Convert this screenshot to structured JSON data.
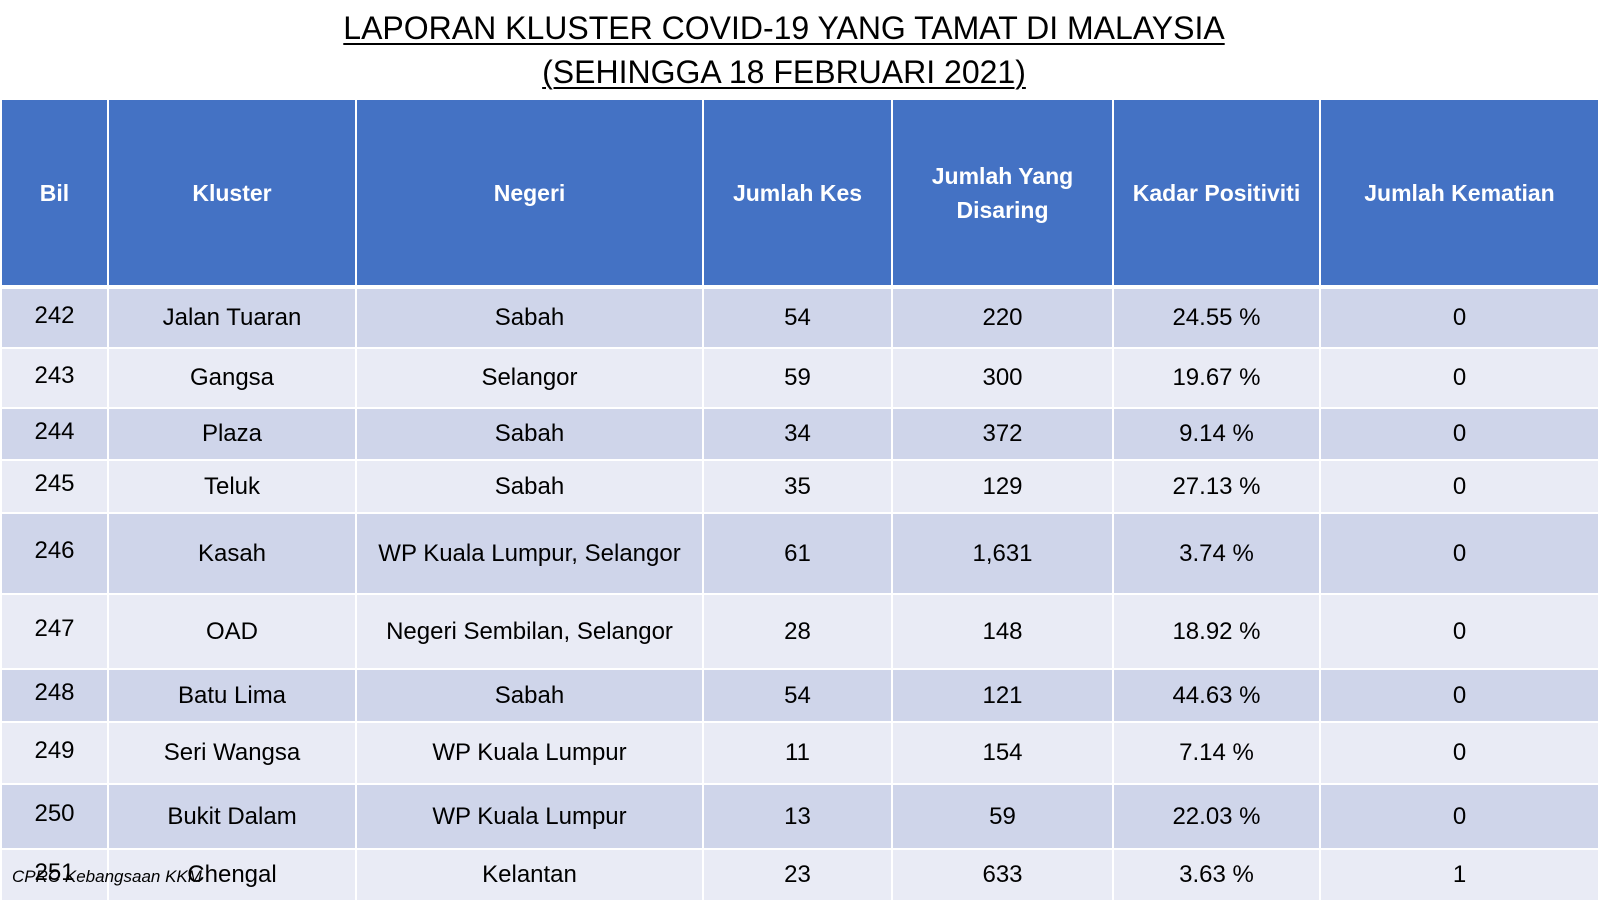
{
  "title": {
    "line1": "LAPORAN KLUSTER COVID-19 YANG TAMAT DI MALAYSIA",
    "line2": "(SEHINGGA 18 FEBRUARI 2021)"
  },
  "table": {
    "columns": [
      "Bil",
      "Kluster",
      "Negeri",
      "Jumlah Kes",
      "Jumlah Yang Disaring",
      "Kadar Positiviti",
      "Jumlah Kematian"
    ],
    "rows": [
      [
        "242",
        "Jalan Tuaran",
        "Sabah",
        "54",
        "220",
        "24.55 %",
        "0"
      ],
      [
        "243",
        "Gangsa",
        "Selangor",
        "59",
        "300",
        "19.67 %",
        "0"
      ],
      [
        "244",
        "Plaza",
        "Sabah",
        "34",
        "372",
        "9.14 %",
        "0"
      ],
      [
        "245",
        "Teluk",
        "Sabah",
        "35",
        "129",
        "27.13 %",
        "0"
      ],
      [
        "246",
        "Kasah",
        "WP Kuala Lumpur, Selangor",
        "61",
        "1,631",
        "3.74 %",
        "0"
      ],
      [
        "247",
        "OAD",
        "Negeri Sembilan, Selangor",
        "28",
        "148",
        "18.92 %",
        "0"
      ],
      [
        "248",
        "Batu Lima",
        "Sabah",
        "54",
        "121",
        "44.63 %",
        "0"
      ],
      [
        "249",
        "Seri Wangsa",
        "WP Kuala Lumpur",
        "11",
        "154",
        "7.14 %",
        "0"
      ],
      [
        "250",
        "Bukit Dalam",
        "WP Kuala Lumpur",
        "13",
        "59",
        "22.03 %",
        "0"
      ],
      [
        "251",
        "Chengal",
        "Kelantan",
        "23",
        "633",
        "3.63 %",
        "1"
      ]
    ]
  },
  "footer": {
    "source": "CPRC Kebangsaan KKM"
  },
  "colors": {
    "header_bg": "#4472C4",
    "header_text": "#FFFFFF",
    "row_odd": "#CFD5EA",
    "row_even": "#E9EBF5"
  }
}
